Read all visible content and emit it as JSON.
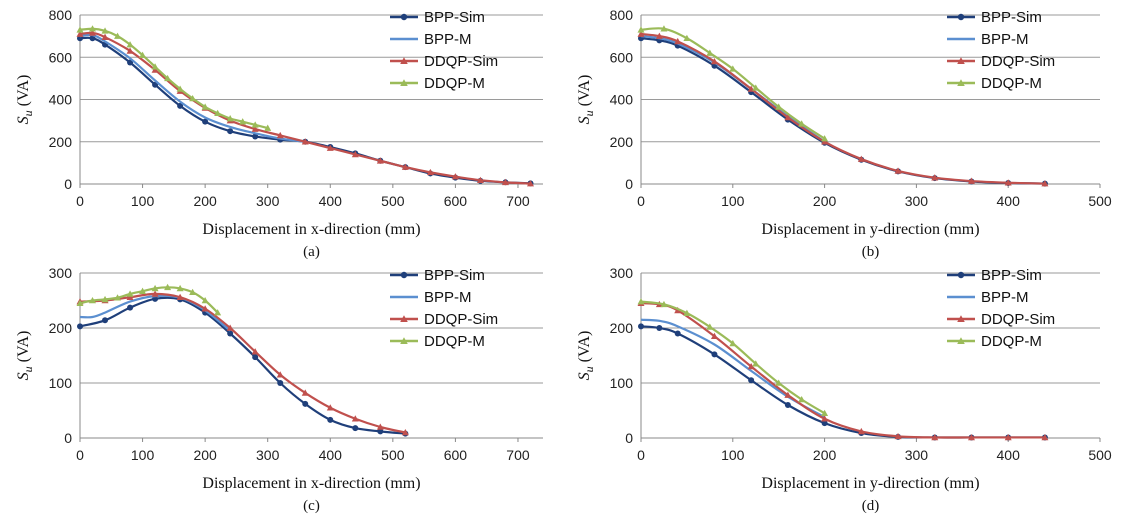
{
  "chart_data": [
    {
      "type": "line",
      "caption": "(a)",
      "xlabel": "Displacement in x-direction (mm)",
      "ylabel_main": "S",
      "ylabel_sub": "u",
      "ylabel_unit": " (VA)",
      "xlim": [
        0,
        740
      ],
      "ylim": [
        0,
        800
      ],
      "xticks": [
        0,
        100,
        200,
        300,
        400,
        500,
        600,
        700
      ],
      "yticks": [
        0,
        200,
        400,
        600,
        800
      ],
      "grid": "horizontal",
      "legend": "top-right",
      "series": [
        {
          "name": "BPP-Sim",
          "color": "#1f3f7a",
          "marker": "circle",
          "x": [
            0,
            20,
            40,
            80,
            120,
            160,
            200,
            240,
            280,
            320,
            360,
            400,
            440,
            480,
            520,
            560,
            600,
            640,
            680,
            720
          ],
          "y": [
            690,
            690,
            660,
            575,
            470,
            370,
            295,
            250,
            225,
            210,
            200,
            175,
            145,
            110,
            80,
            50,
            30,
            15,
            8,
            3
          ]
        },
        {
          "name": "BPP-M",
          "color": "#5b8fd0",
          "marker": "none",
          "x": [
            0,
            20,
            40,
            80,
            120,
            160,
            200,
            240,
            280,
            320,
            360
          ],
          "y": [
            700,
            705,
            675,
            595,
            490,
            390,
            315,
            270,
            240,
            215,
            200
          ]
        },
        {
          "name": "DDQP-Sim",
          "color": "#c0504d",
          "marker": "triangle",
          "x": [
            0,
            20,
            40,
            80,
            120,
            160,
            200,
            240,
            280,
            320,
            360,
            400,
            440,
            480,
            520,
            560,
            600,
            640,
            680,
            720
          ],
          "y": [
            710,
            715,
            695,
            630,
            540,
            440,
            360,
            300,
            260,
            230,
            200,
            170,
            140,
            110,
            80,
            55,
            35,
            18,
            8,
            2
          ]
        },
        {
          "name": "DDQP-M",
          "color": "#9bbb59",
          "marker": "triangle",
          "x": [
            0,
            20,
            40,
            60,
            80,
            100,
            120,
            140,
            160,
            180,
            200,
            220,
            240,
            260,
            280,
            300
          ],
          "y": [
            730,
            735,
            725,
            700,
            660,
            610,
            555,
            500,
            450,
            405,
            365,
            335,
            310,
            295,
            280,
            265
          ]
        }
      ]
    },
    {
      "type": "line",
      "caption": "(b)",
      "xlabel": "Displacement in y-direction (mm)",
      "ylabel_main": "S",
      "ylabel_sub": "u",
      "ylabel_unit": " (VA)",
      "xlim": [
        0,
        500
      ],
      "ylim": [
        0,
        800
      ],
      "xticks": [
        0,
        100,
        200,
        300,
        400,
        500
      ],
      "yticks": [
        0,
        200,
        400,
        600,
        800
      ],
      "grid": "horizontal",
      "legend": "top-right",
      "series": [
        {
          "name": "BPP-Sim",
          "color": "#1f3f7a",
          "marker": "circle",
          "x": [
            0,
            20,
            40,
            80,
            120,
            160,
            200,
            240,
            280,
            320,
            360,
            400,
            440
          ],
          "y": [
            690,
            680,
            655,
            560,
            435,
            305,
            195,
            115,
            60,
            28,
            12,
            5,
            2
          ]
        },
        {
          "name": "BPP-M",
          "color": "#5b8fd0",
          "marker": "none",
          "x": [
            0,
            20,
            40,
            80,
            120,
            160,
            200
          ],
          "y": [
            700,
            690,
            665,
            575,
            450,
            320,
            200
          ]
        },
        {
          "name": "DDQP-Sim",
          "color": "#c0504d",
          "marker": "triangle",
          "x": [
            0,
            20,
            40,
            80,
            120,
            160,
            200,
            240,
            280,
            320,
            360,
            400,
            440
          ],
          "y": [
            710,
            700,
            675,
            580,
            450,
            315,
            200,
            118,
            62,
            30,
            14,
            6,
            2
          ]
        },
        {
          "name": "DDQP-M",
          "color": "#9bbb59",
          "marker": "triangle",
          "x": [
            0,
            25,
            50,
            75,
            100,
            125,
            150,
            175,
            200
          ],
          "y": [
            730,
            735,
            690,
            620,
            545,
            455,
            365,
            285,
            215
          ]
        }
      ]
    },
    {
      "type": "line",
      "caption": "(c)",
      "xlabel": "Displacement in x-direction (mm)",
      "ylabel_main": "S",
      "ylabel_sub": "u",
      "ylabel_unit": " (VA)",
      "xlim": [
        0,
        740
      ],
      "ylim": [
        0,
        300
      ],
      "xticks": [
        0,
        100,
        200,
        300,
        400,
        500,
        600,
        700
      ],
      "yticks": [
        0,
        100,
        200,
        300
      ],
      "grid": "horizontal",
      "legend": "top-right",
      "series": [
        {
          "name": "BPP-Sim",
          "color": "#1f3f7a",
          "marker": "circle",
          "x": [
            0,
            40,
            80,
            120,
            160,
            200,
            240,
            280,
            320,
            360,
            400,
            440,
            480,
            520
          ],
          "y": [
            203,
            214,
            237,
            253,
            252,
            228,
            190,
            147,
            100,
            62,
            33,
            18,
            12,
            8
          ]
        },
        {
          "name": "BPP-M",
          "color": "#5b8fd0",
          "marker": "none",
          "x": [
            0,
            20,
            40,
            80,
            120,
            160,
            200,
            240
          ],
          "y": [
            220,
            220,
            228,
            248,
            258,
            255,
            232,
            195
          ]
        },
        {
          "name": "DDQP-Sim",
          "color": "#c0504d",
          "marker": "triangle",
          "x": [
            0,
            40,
            80,
            120,
            160,
            200,
            240,
            280,
            320,
            360,
            400,
            440,
            480,
            520
          ],
          "y": [
            248,
            250,
            256,
            262,
            256,
            235,
            200,
            157,
            115,
            82,
            55,
            35,
            20,
            10
          ]
        },
        {
          "name": "DDQP-M",
          "color": "#9bbb59",
          "marker": "triangle",
          "x": [
            0,
            20,
            40,
            60,
            80,
            100,
            120,
            140,
            160,
            180,
            200,
            220
          ],
          "y": [
            245,
            250,
            252,
            255,
            262,
            267,
            272,
            274,
            272,
            265,
            250,
            228
          ]
        }
      ]
    },
    {
      "type": "line",
      "caption": "(d)",
      "xlabel": "Displacement in y-direction (mm)",
      "ylabel_main": "S",
      "ylabel_sub": "u",
      "ylabel_unit": " (VA)",
      "xlim": [
        0,
        500
      ],
      "ylim": [
        0,
        300
      ],
      "xticks": [
        0,
        100,
        200,
        300,
        400,
        500
      ],
      "yticks": [
        0,
        100,
        200,
        300
      ],
      "grid": "horizontal",
      "legend": "top-right",
      "series": [
        {
          "name": "BPP-Sim",
          "color": "#1f3f7a",
          "marker": "circle",
          "x": [
            0,
            20,
            40,
            80,
            120,
            160,
            200,
            240,
            280,
            320,
            360,
            400,
            440
          ],
          "y": [
            203,
            200,
            190,
            152,
            105,
            60,
            27,
            9,
            2,
            1,
            1,
            1,
            1
          ]
        },
        {
          "name": "BPP-M",
          "color": "#5b8fd0",
          "marker": "none",
          "x": [
            0,
            20,
            40,
            80,
            120,
            160,
            200
          ],
          "y": [
            215,
            213,
            203,
            170,
            122,
            75,
            38
          ]
        },
        {
          "name": "DDQP-Sim",
          "color": "#c0504d",
          "marker": "triangle",
          "x": [
            0,
            20,
            40,
            80,
            120,
            160,
            200,
            240,
            280,
            320,
            360,
            400,
            440
          ],
          "y": [
            245,
            243,
            232,
            185,
            130,
            78,
            35,
            12,
            3,
            1,
            1,
            1,
            1
          ]
        },
        {
          "name": "DDQP-M",
          "color": "#9bbb59",
          "marker": "triangle",
          "x": [
            0,
            25,
            50,
            75,
            100,
            125,
            150,
            175,
            200
          ],
          "y": [
            248,
            243,
            227,
            202,
            172,
            135,
            100,
            70,
            45
          ]
        }
      ]
    }
  ]
}
